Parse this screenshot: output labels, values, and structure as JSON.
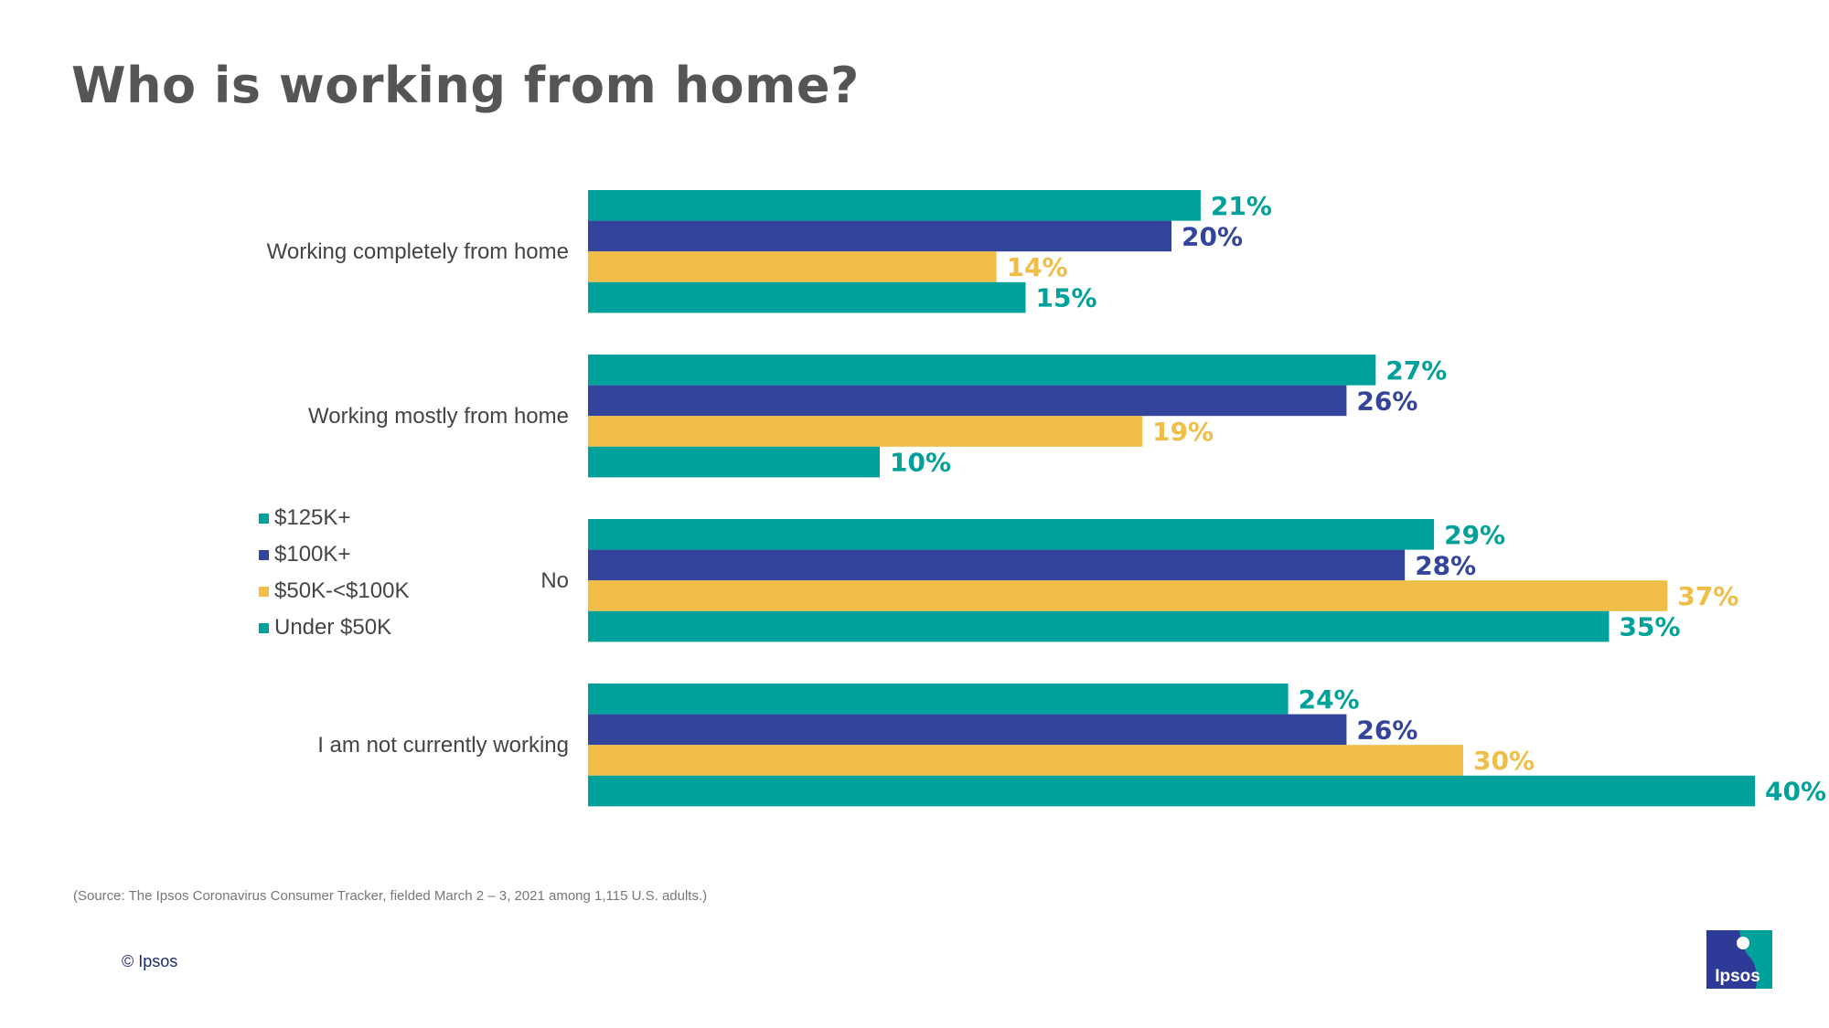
{
  "title": "Who is working from home?",
  "source": "(Source: The Ipsos Coronavirus Consumer Tracker, fielded March 2 – 3, 2021 among 1,115 U.S. adults.)",
  "copyright": "© Ipsos",
  "logo": {
    "text": "Ipsos",
    "colors": {
      "primary": "#2e3a97",
      "accent": "#00a19a"
    }
  },
  "chart_data": {
    "type": "bar",
    "orientation": "horizontal",
    "categories": [
      "Working completely from home",
      "Working mostly from home",
      "No",
      "I am not currently working"
    ],
    "series": [
      {
        "name": "$125K+",
        "color": "#00a19a",
        "values": [
          21,
          27,
          29,
          24
        ]
      },
      {
        "name": "$100K+",
        "color": "#32449b",
        "values": [
          20,
          26,
          28,
          26
        ]
      },
      {
        "name": "$50K-<$100K",
        "color": "#f0bd46",
        "values": [
          14,
          19,
          37,
          30
        ]
      },
      {
        "name": "Under $50K",
        "color": "#00a19a",
        "values": [
          15,
          10,
          35,
          40
        ]
      }
    ],
    "value_suffix": "%",
    "xlim": [
      0,
      40
    ],
    "grid": false,
    "legend_position": "left"
  }
}
